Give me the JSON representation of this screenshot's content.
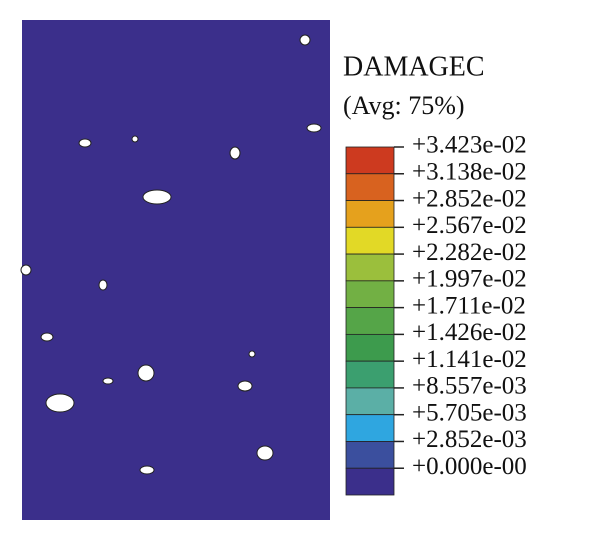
{
  "legend": {
    "title": "DAMAGEC",
    "subtitle": "(Avg: 75%)",
    "labels": [
      "+3.423e-02",
      "+3.138e-02",
      "+2.852e-02",
      "+2.567e-02",
      "+2.282e-02",
      "+1.997e-02",
      "+1.711e-02",
      "+1.426e-02",
      "+1.141e-02",
      "+8.557e-03",
      "+5.705e-03",
      "+2.852e-03",
      "+0.000e-00"
    ],
    "colors": [
      "#cd3a1f",
      "#d8621f",
      "#e5a11d",
      "#e2d926",
      "#9bbf3c",
      "#72b044",
      "#55a548",
      "#3d9b4d",
      "#3b9f6f",
      "#5bafa6",
      "#2fa6e0",
      "#3b4f9e",
      "#3b2f8b"
    ]
  }
}
